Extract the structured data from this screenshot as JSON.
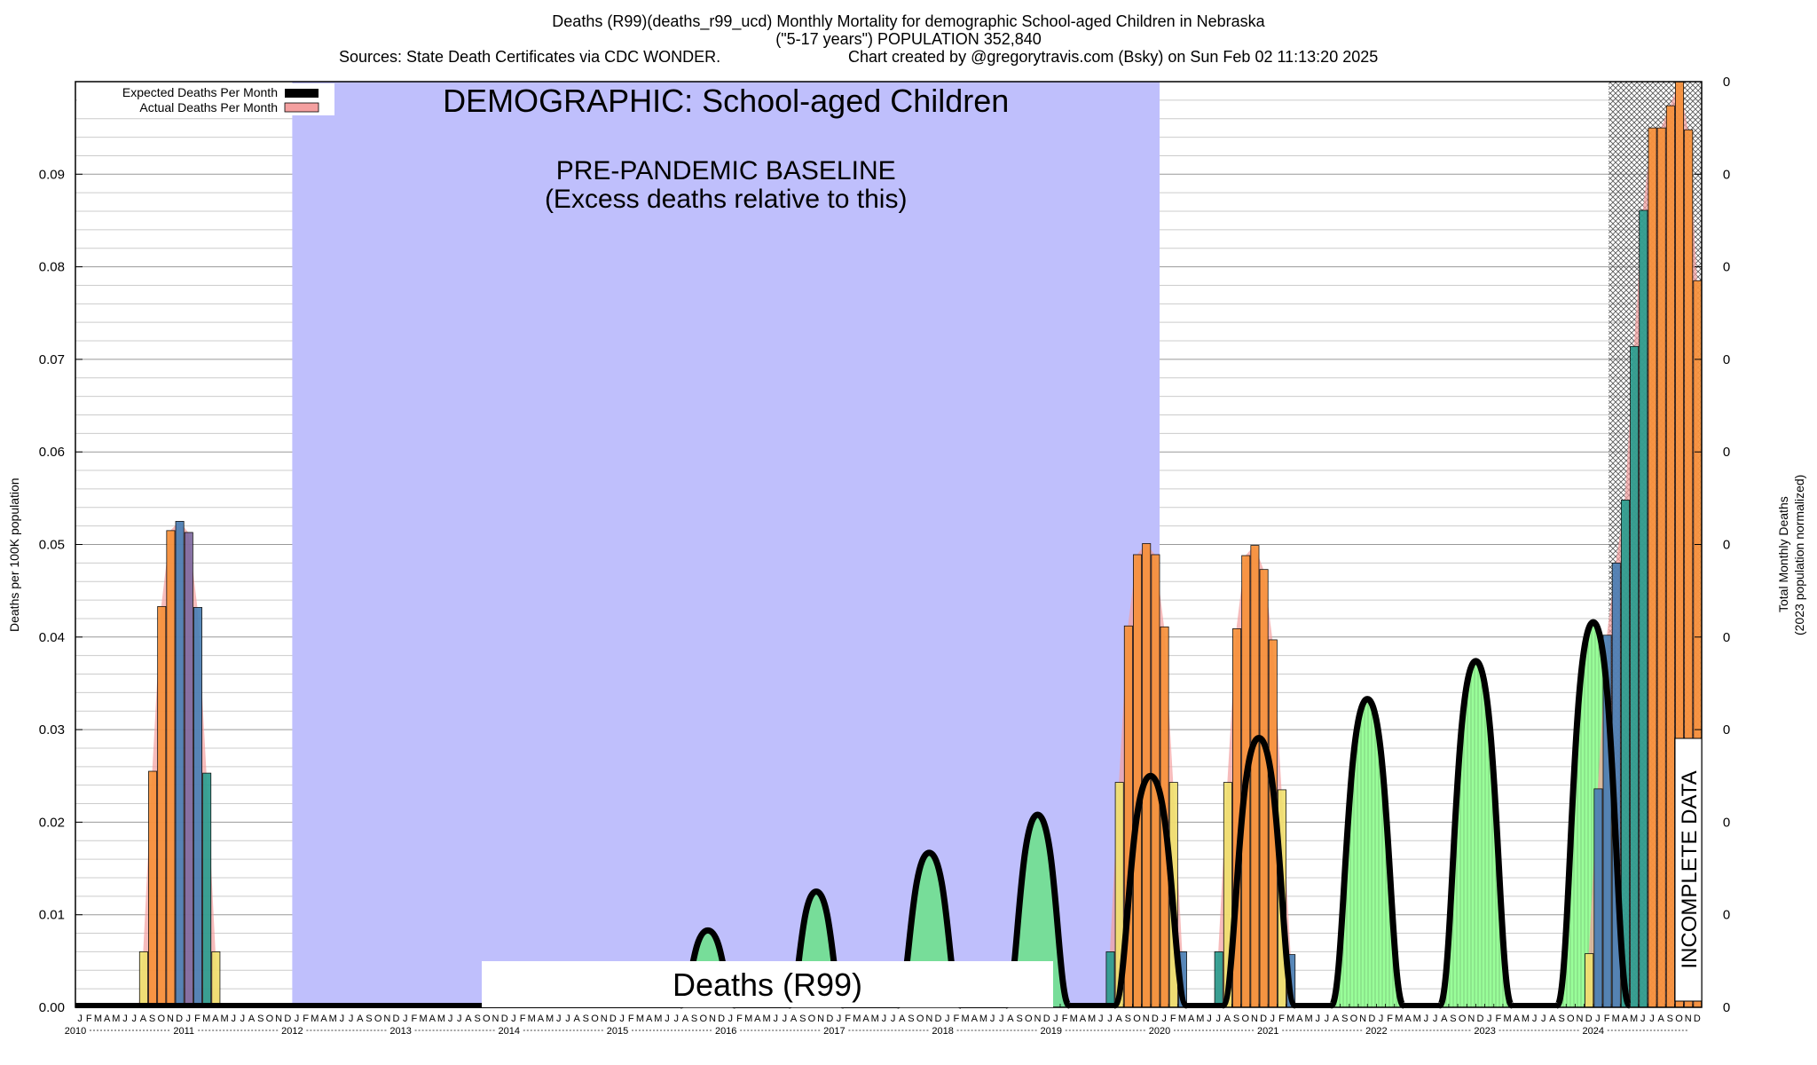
{
  "header": {
    "line1": "Deaths (R99)(deaths_r99_ucd) Monthly Mortality for demographic School-aged Children in Nebraska",
    "line2": "(\"5-17 years\") POPULATION 352,840",
    "line3_left": "Sources: State Death Certificates via CDC WONDER.",
    "line3_right": "Chart created by @gregorytravis.com (Bsky) on Sun Feb 02 11:13:20 2025"
  },
  "overlay": {
    "demographic": "DEMOGRAPHIC: School-aged Children",
    "baseline_line1": "PRE-PANDEMIC BASELINE",
    "baseline_line2": "(Excess deaths relative to this)",
    "cause_box": "Deaths (R99)",
    "incomplete": "INCOMPLETE DATA"
  },
  "legend": {
    "expected": "Expected Deaths Per Month",
    "actual": "Actual Deaths Per Month"
  },
  "colors": {
    "baseline_shade": "#bfbffc",
    "expected_line": "#000000",
    "actual_fill": "#f4a0a0",
    "excess_fill_early": "#77dd99",
    "excess_fill_late": "#99ff99",
    "bar_orange": "#f7913a",
    "bar_yellow": "#f0e070",
    "bar_blue": "#4a7fb5",
    "bar_purple": "#7e6aa0",
    "bar_teal": "#2a9d8f"
  },
  "chart_data": {
    "type": "bar",
    "ylabel_left": "Deaths per 100K population",
    "ylabel_right_1": "Total Monthly Deaths",
    "ylabel_right_2": "(2023 population normalized)",
    "ylim": [
      0,
      0.1
    ],
    "y_ticks": [
      "0.00",
      "0.01",
      "0.02",
      "0.03",
      "0.04",
      "0.05",
      "0.06",
      "0.07",
      "0.08",
      "0.09"
    ],
    "right_ticks": [
      "0",
      "0",
      "0",
      "0",
      "0",
      "0",
      "0",
      "0",
      "0",
      "0",
      "0"
    ],
    "years": [
      "2010",
      "2011",
      "2012",
      "2013",
      "2014",
      "2015",
      "2016",
      "2017",
      "2018",
      "2019",
      "2020",
      "2021",
      "2022",
      "2023",
      "2024"
    ],
    "month_letters": [
      "J",
      "F",
      "M",
      "A",
      "M",
      "J",
      "J",
      "A",
      "S",
      "O",
      "N",
      "D"
    ],
    "baseline_period": [
      "2012-01",
      "2019-12"
    ],
    "incomplete_period": [
      "2024-03",
      "2024-12"
    ],
    "actual_bar_groups": [
      {
        "start": "2010-08",
        "values": [
          0.006,
          0.0255,
          0.0433,
          0.0515,
          0.0525,
          0.0513,
          0.0432,
          0.0253,
          0.006
        ]
      },
      {
        "start": "2019-07",
        "values": [
          0.006,
          0.0243,
          0.0412,
          0.0489,
          0.0501,
          0.0489,
          0.0411,
          0.0243,
          0.006
        ]
      },
      {
        "start": "2020-07",
        "values": [
          0.006,
          0.0243,
          0.0409,
          0.0488,
          0.0499,
          0.0473,
          0.0397,
          0.0235,
          0.0057
        ]
      },
      {
        "start": "2023-12",
        "values": [
          0.0058,
          0.0236,
          0.0402,
          0.048,
          0.0548,
          0.0714,
          0.0861,
          0.095,
          0.095,
          0.0974,
          0.1,
          0.0948,
          0.0785
        ]
      }
    ],
    "expected_humps": [
      {
        "start": "2015-08",
        "peak": 0.0083,
        "months": 6
      },
      {
        "start": "2016-08",
        "peak": 0.0125,
        "months": 6
      },
      {
        "start": "2017-08",
        "peak": 0.0167,
        "months": 7
      },
      {
        "start": "2018-08",
        "peak": 0.0208,
        "months": 7
      },
      {
        "start": "2019-08",
        "peak": 0.025,
        "months": 8
      },
      {
        "start": "2020-08",
        "peak": 0.0291,
        "months": 8
      },
      {
        "start": "2021-08",
        "peak": 0.0333,
        "months": 8
      },
      {
        "start": "2022-08",
        "peak": 0.0374,
        "months": 8
      },
      {
        "start": "2023-09",
        "peak": 0.0416,
        "months": 8
      }
    ]
  }
}
